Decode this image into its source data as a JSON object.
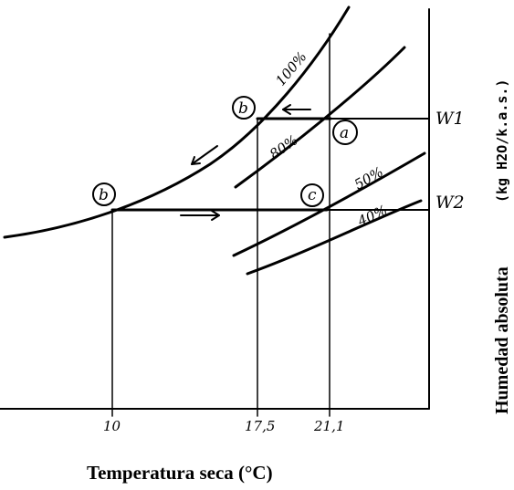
{
  "axes": {
    "x_label": "Temperatura seca  (°C)",
    "y_label": "Humedad absoluta",
    "y_unit": "(kg H2O/k.a.s.)"
  },
  "x_ticks": [
    "10",
    "17,5",
    "21,1"
  ],
  "humidity_levels": [
    "W1",
    "W2"
  ],
  "curves": [
    "100%",
    "80%",
    "50%",
    "40%"
  ],
  "points": [
    "a",
    "b",
    "b",
    "c"
  ]
}
